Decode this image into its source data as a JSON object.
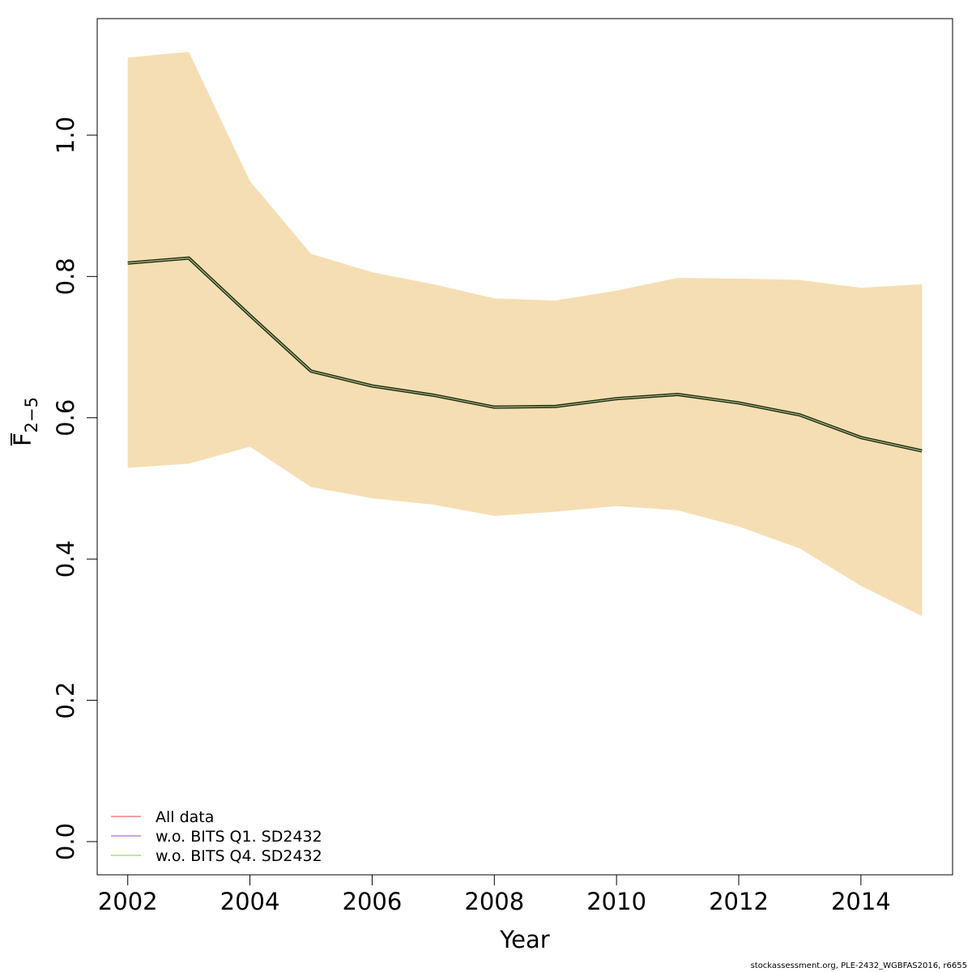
{
  "chart_data": {
    "type": "line",
    "xlabel": "Year",
    "ylabel_main": "F",
    "ylabel_sub": "2−5",
    "x": [
      2002,
      2003,
      2004,
      2005,
      2006,
      2007,
      2008,
      2009,
      2010,
      2011,
      2012,
      2013,
      2014,
      2015
    ],
    "series": [
      {
        "name": "All data",
        "color": "#f08080",
        "values": [
          0.819,
          0.826,
          0.745,
          0.666,
          0.645,
          0.632,
          0.615,
          0.616,
          0.627,
          0.633,
          0.621,
          0.604,
          0.572,
          0.553
        ]
      },
      {
        "name": "w.o. BITS Q1. SD2432",
        "color": "#b58bd4",
        "values": [
          0.819,
          0.826,
          0.745,
          0.666,
          0.645,
          0.632,
          0.615,
          0.616,
          0.627,
          0.633,
          0.621,
          0.604,
          0.572,
          0.553
        ]
      },
      {
        "name": "w.o. BITS Q4. SD2432",
        "color": "#a6e07a",
        "values": [
          0.819,
          0.826,
          0.745,
          0.666,
          0.645,
          0.632,
          0.615,
          0.616,
          0.627,
          0.633,
          0.621,
          0.604,
          0.572,
          0.553
        ]
      }
    ],
    "confidence_band": {
      "color": "#f5deb3",
      "upper": [
        1.11,
        1.118,
        0.935,
        0.832,
        0.806,
        0.789,
        0.769,
        0.766,
        0.78,
        0.798,
        0.797,
        0.795,
        0.784,
        0.789
      ],
      "lower": [
        0.529,
        0.535,
        0.559,
        0.502,
        0.486,
        0.477,
        0.461,
        0.467,
        0.475,
        0.469,
        0.446,
        0.415,
        0.362,
        0.319
      ]
    },
    "center_line_color": "#1a2e0a",
    "xticks": [
      "2002",
      "2004",
      "2006",
      "2008",
      "2010",
      "2012",
      "2014"
    ],
    "xtick_values": [
      2002,
      2004,
      2006,
      2008,
      2010,
      2012,
      2014
    ],
    "yticks": [
      "0.0",
      "0.2",
      "0.4",
      "0.6",
      "0.8",
      "1.0"
    ],
    "ytick_values": [
      0.0,
      0.2,
      0.4,
      0.6,
      0.8,
      1.0
    ],
    "xlim": [
      2001.5,
      2015.5
    ],
    "ylim": [
      -0.047,
      1.165
    ],
    "legend_position": "bottom-left",
    "grid": false
  },
  "footer": "stockassessment.org, PLE-2432_WGBFAS2016, r6655"
}
